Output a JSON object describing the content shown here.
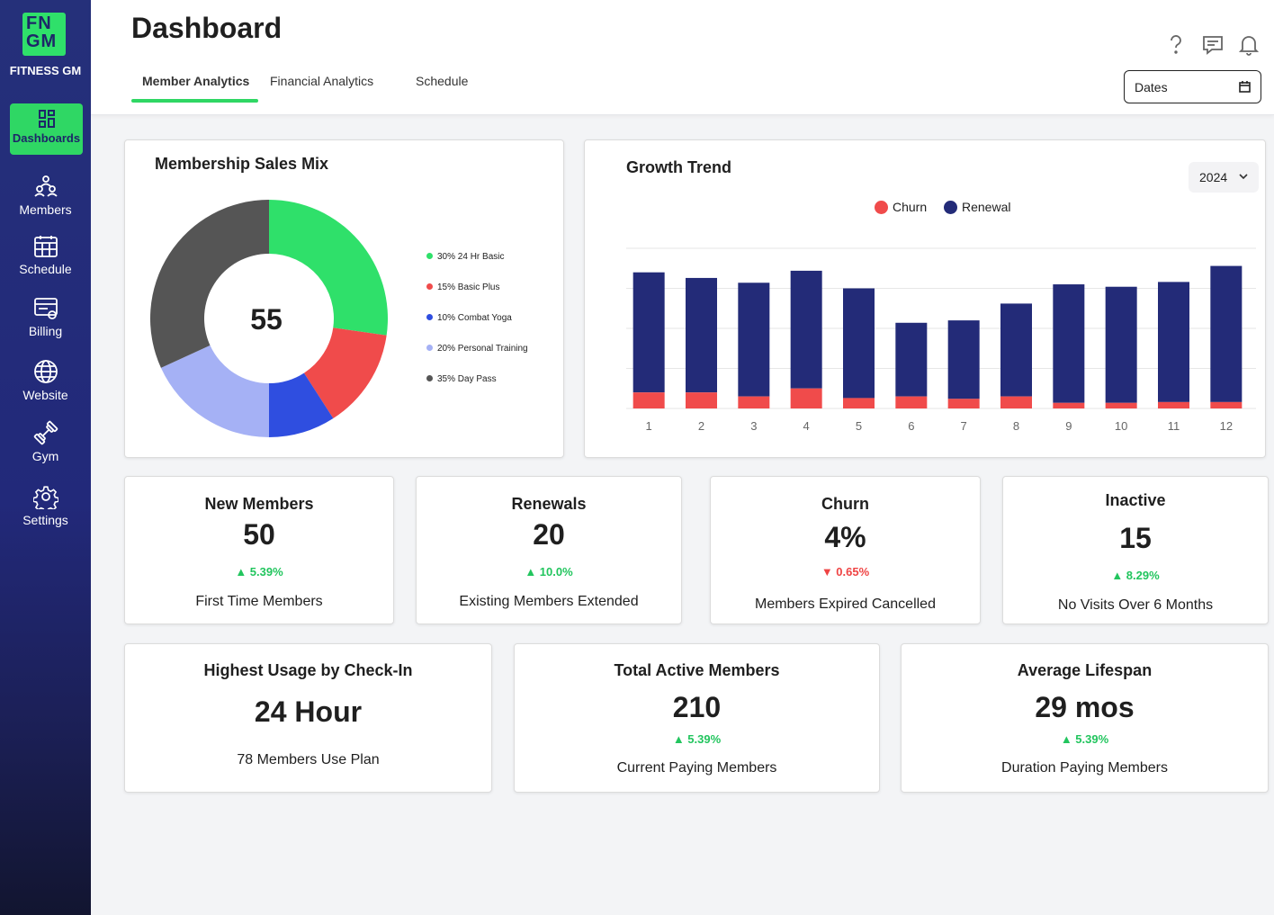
{
  "brand": {
    "logo_mark": "FN GM",
    "name": "FITNESS GM"
  },
  "sidebar": {
    "items": [
      {
        "label": "Dashboards",
        "icon": "dashboard-icon",
        "active": true
      },
      {
        "label": "Members",
        "icon": "members-icon"
      },
      {
        "label": "Schedule",
        "icon": "calendar-icon"
      },
      {
        "label": "Billing",
        "icon": "billing-icon"
      },
      {
        "label": "Website",
        "icon": "globe-icon"
      },
      {
        "label": "Gym",
        "icon": "dumbbell-icon"
      },
      {
        "label": "Settings",
        "icon": "gear-icon"
      }
    ]
  },
  "header": {
    "title": "Dashboard",
    "tabs": [
      {
        "label": "Member Analytics",
        "active": true
      },
      {
        "label": "Financial Analytics"
      },
      {
        "label": "Schedule"
      }
    ],
    "icons": [
      "help-icon",
      "chat-icon",
      "bell-icon"
    ],
    "dates_label": "Dates"
  },
  "sales_mix": {
    "title": "Membership Sales Mix",
    "center_value": "55",
    "legend": [
      {
        "label": "30% 24 Hr Basic",
        "color": "#2fe06a"
      },
      {
        "label": "15% Basic Plus",
        "color": "#f04b4b"
      },
      {
        "label": "10% Combat Yoga",
        "color": "#2f4ee0"
      },
      {
        "label": "20% Personal Training",
        "color": "#a5b1f5"
      },
      {
        "label": "35% Day Pass",
        "color": "#555555"
      }
    ]
  },
  "growth": {
    "title": "Growth Trend",
    "year": "2024",
    "legend": {
      "churn": "Churn",
      "renewal": "Renewal"
    }
  },
  "colors": {
    "accent": "#2fd764",
    "navy": "#25307a",
    "renewal": "#232b78",
    "churn": "#f04b4b"
  },
  "chart_data": [
    {
      "type": "pie",
      "title": "Membership Sales Mix",
      "center_label": "55",
      "categories": [
        "24 Hr Basic",
        "Basic Plus",
        "Combat Yoga",
        "Personal Training",
        "Day Pass"
      ],
      "values": [
        30,
        15,
        10,
        20,
        35
      ],
      "colors": [
        "#2fe06a",
        "#f04b4b",
        "#2f4ee0",
        "#a5b1f5",
        "#555555"
      ]
    },
    {
      "type": "bar",
      "title": "Growth Trend",
      "stacked": true,
      "categories": [
        "1",
        "2",
        "3",
        "4",
        "5",
        "6",
        "7",
        "8",
        "9",
        "10",
        "11",
        "12"
      ],
      "series": [
        {
          "name": "Churn",
          "color": "#f04b4b",
          "values": [
            20,
            20,
            15,
            25,
            13,
            15,
            12,
            15,
            7,
            7,
            8,
            8
          ]
        },
        {
          "name": "Renewal",
          "color": "#232b78",
          "values": [
            150,
            143,
            142,
            147,
            137,
            92,
            98,
            116,
            148,
            145,
            150,
            170
          ]
        }
      ],
      "ylim": [
        0,
        200
      ],
      "grid": true
    }
  ],
  "stats_row1": [
    {
      "title": "New Members",
      "value": "50",
      "change": "5.39%",
      "direction": "up",
      "sub": "First Time Members"
    },
    {
      "title": "Renewals",
      "value": "20",
      "change": "10.0%",
      "direction": "up",
      "sub": "Existing Members Extended"
    },
    {
      "title": "Churn",
      "value": "4%",
      "change": "0.65%",
      "direction": "down",
      "sub": "Members Expired Cancelled"
    },
    {
      "title": "Inactive",
      "value": "15",
      "change": "8.29%",
      "direction": "up",
      "sub": "No Visits Over 6 Months"
    }
  ],
  "stats_row2": [
    {
      "title": "Highest Usage by Check-In",
      "value": "24 Hour",
      "sub": "78 Members Use Plan"
    },
    {
      "title": "Total Active Members",
      "value": "210",
      "change": "5.39%",
      "direction": "up",
      "sub": "Current Paying Members"
    },
    {
      "title": "Average Lifespan",
      "value": "29 mos",
      "change": "5.39%",
      "direction": "up",
      "sub": "Duration Paying Members"
    }
  ]
}
